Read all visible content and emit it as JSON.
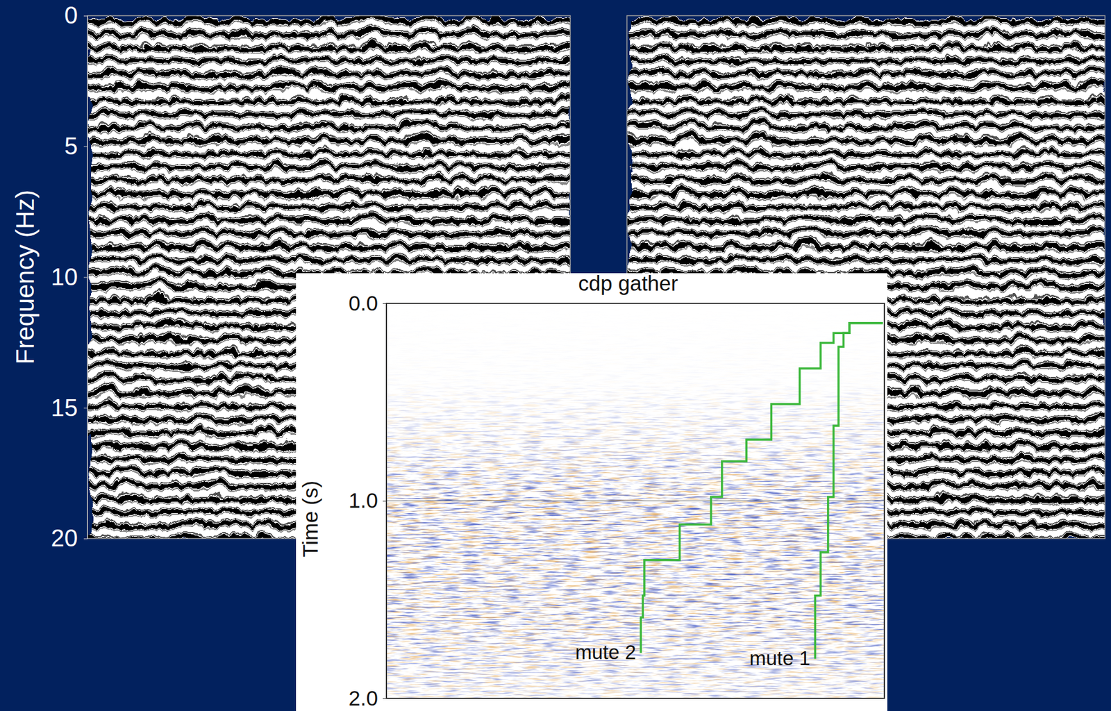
{
  "chart_data": [
    {
      "type": "image",
      "ylabel": "Frequency (Hz)",
      "ylim": [
        0,
        20
      ],
      "yticks": [
        0,
        5,
        10,
        15,
        20
      ],
      "tick_labels": "y",
      "grid": false
    },
    {
      "type": "line",
      "title": "cdp gather",
      "ylabel": "Time (s)",
      "xlim": [
        0,
        1
      ],
      "ylim": [
        0,
        2
      ],
      "yticks": [
        {
          "value": 0,
          "label": "0.0"
        },
        {
          "value": 1,
          "label": "1.0"
        },
        {
          "value": 2,
          "label": "2.0"
        }
      ],
      "tick_labels": "y",
      "grid": true,
      "series": [
        {
          "name": "mute 2",
          "color": "#3cb83c",
          "line_style": "solid",
          "x": [
            0.997,
            0.93,
            0.898,
            0.872,
            0.83,
            0.773,
            0.723,
            0.674,
            0.652,
            0.589,
            0.518,
            0.515,
            0.511
          ],
          "values": [
            0.1,
            0.15,
            0.2,
            0.33,
            0.51,
            0.69,
            0.8,
            0.98,
            1.12,
            1.3,
            1.48,
            1.59,
            1.77
          ]
        },
        {
          "name": "mute 1",
          "color": "#3cb83c",
          "line_style": "solid",
          "x": [
            0.997,
            0.93,
            0.918,
            0.908,
            0.898,
            0.887,
            0.872,
            0.861
          ],
          "values": [
            0.1,
            0.15,
            0.22,
            0.62,
            0.98,
            1.26,
            1.48,
            1.8
          ]
        }
      ]
    }
  ]
}
